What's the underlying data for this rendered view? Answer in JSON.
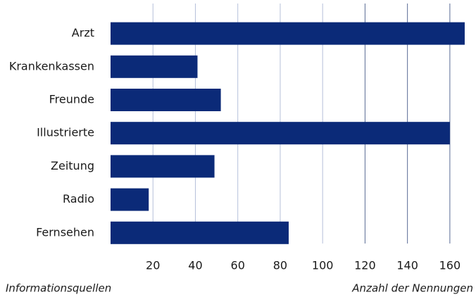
{
  "chart_data": {
    "type": "barh",
    "categories": [
      "Arzt",
      "Krankenkassen",
      "Freunde",
      "Illustrierte",
      "Zeitung",
      "Radio",
      "Fernsehen"
    ],
    "values": [
      167,
      41,
      52,
      160,
      49,
      18,
      84
    ],
    "color": "#0b2a78",
    "xlim": [
      0,
      170
    ],
    "xticks": [
      20,
      40,
      60,
      80,
      100,
      120,
      140,
      160
    ],
    "grid": true,
    "ylabel": "Informationsquellen",
    "xlabel": "Anzahl der Nennungen"
  }
}
